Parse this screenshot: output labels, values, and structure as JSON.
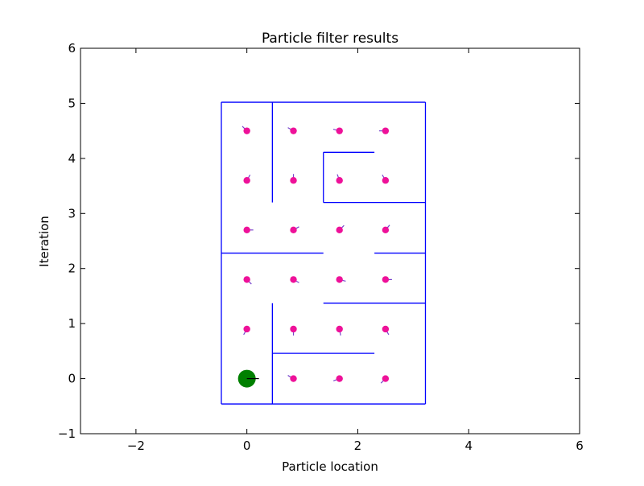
{
  "chart_data": {
    "type": "scatter",
    "title": "Particle filter results",
    "xlabel": "Particle location",
    "ylabel": "Iteration",
    "xlim": [
      -3,
      6
    ],
    "ylim": [
      -1,
      6
    ],
    "x_ticks": [
      -2,
      0,
      2,
      4,
      6
    ],
    "y_ticks": [
      -1,
      0,
      1,
      2,
      3,
      4,
      5,
      6
    ],
    "x_tick_labels": [
      "−2",
      "0",
      "2",
      "4",
      "6"
    ],
    "y_tick_labels": [
      "−1",
      "0",
      "1",
      "2",
      "3",
      "4",
      "5",
      "6"
    ],
    "grid": false,
    "legend": null,
    "colors": {
      "maze_walls": "#0000ff",
      "particles": "#ee1199",
      "particle_heading": "#7744cc",
      "robot": "#008000",
      "robot_heading": "#000000"
    },
    "maze_walls": [
      {
        "x": [
          -0.46,
          3.22
        ],
        "y": [
          5.02,
          5.02
        ]
      },
      {
        "x": [
          -0.46,
          -0.46
        ],
        "y": [
          5.02,
          -0.46
        ]
      },
      {
        "x": [
          -0.46,
          3.22
        ],
        "y": [
          -0.46,
          -0.46
        ]
      },
      {
        "x": [
          3.22,
          3.22
        ],
        "y": [
          5.02,
          -0.46
        ]
      },
      {
        "x": [
          0.46,
          0.46
        ],
        "y": [
          5.02,
          3.2
        ]
      },
      {
        "x": [
          1.38,
          2.3
        ],
        "y": [
          4.11,
          4.11
        ]
      },
      {
        "x": [
          1.38,
          1.38
        ],
        "y": [
          4.11,
          3.2
        ]
      },
      {
        "x": [
          1.38,
          3.22
        ],
        "y": [
          3.2,
          3.2
        ]
      },
      {
        "x": [
          -0.46,
          1.38
        ],
        "y": [
          2.28,
          2.28
        ]
      },
      {
        "x": [
          2.3,
          3.22
        ],
        "y": [
          2.28,
          2.28
        ]
      },
      {
        "x": [
          1.38,
          3.22
        ],
        "y": [
          1.37,
          1.37
        ]
      },
      {
        "x": [
          0.46,
          0.46
        ],
        "y": [
          1.37,
          -0.46
        ]
      },
      {
        "x": [
          0.46,
          2.3
        ],
        "y": [
          0.46,
          0.46
        ]
      }
    ],
    "particles": [
      {
        "x": 0.0,
        "y": 4.5,
        "heading_deg": 135
      },
      {
        "x": 0.84,
        "y": 4.5,
        "heading_deg": 150
      },
      {
        "x": 1.67,
        "y": 4.5,
        "heading_deg": 165
      },
      {
        "x": 2.5,
        "y": 4.5,
        "heading_deg": 180
      },
      {
        "x": 0.0,
        "y": 3.6,
        "heading_deg": 60
      },
      {
        "x": 0.84,
        "y": 3.6,
        "heading_deg": 90
      },
      {
        "x": 1.67,
        "y": 3.6,
        "heading_deg": 110
      },
      {
        "x": 2.5,
        "y": 3.6,
        "heading_deg": 120
      },
      {
        "x": 0.0,
        "y": 2.7,
        "heading_deg": 0
      },
      {
        "x": 0.84,
        "y": 2.7,
        "heading_deg": 30
      },
      {
        "x": 1.67,
        "y": 2.7,
        "heading_deg": 45
      },
      {
        "x": 2.5,
        "y": 2.7,
        "heading_deg": 50
      },
      {
        "x": 0.0,
        "y": 1.8,
        "heading_deg": 315
      },
      {
        "x": 0.84,
        "y": 1.8,
        "heading_deg": 330
      },
      {
        "x": 1.67,
        "y": 1.8,
        "heading_deg": 345
      },
      {
        "x": 2.5,
        "y": 1.8,
        "heading_deg": 0
      },
      {
        "x": 0.0,
        "y": 0.9,
        "heading_deg": 240
      },
      {
        "x": 0.84,
        "y": 0.9,
        "heading_deg": 270
      },
      {
        "x": 1.67,
        "y": 0.9,
        "heading_deg": 280
      },
      {
        "x": 2.5,
        "y": 0.9,
        "heading_deg": 300
      },
      {
        "x": 0.84,
        "y": 0.0,
        "heading_deg": 150
      },
      {
        "x": 1.67,
        "y": 0.0,
        "heading_deg": 200
      },
      {
        "x": 2.5,
        "y": 0.0,
        "heading_deg": 225
      }
    ],
    "robot": {
      "x": 0.0,
      "y": 0.0,
      "heading_deg": 0
    }
  }
}
